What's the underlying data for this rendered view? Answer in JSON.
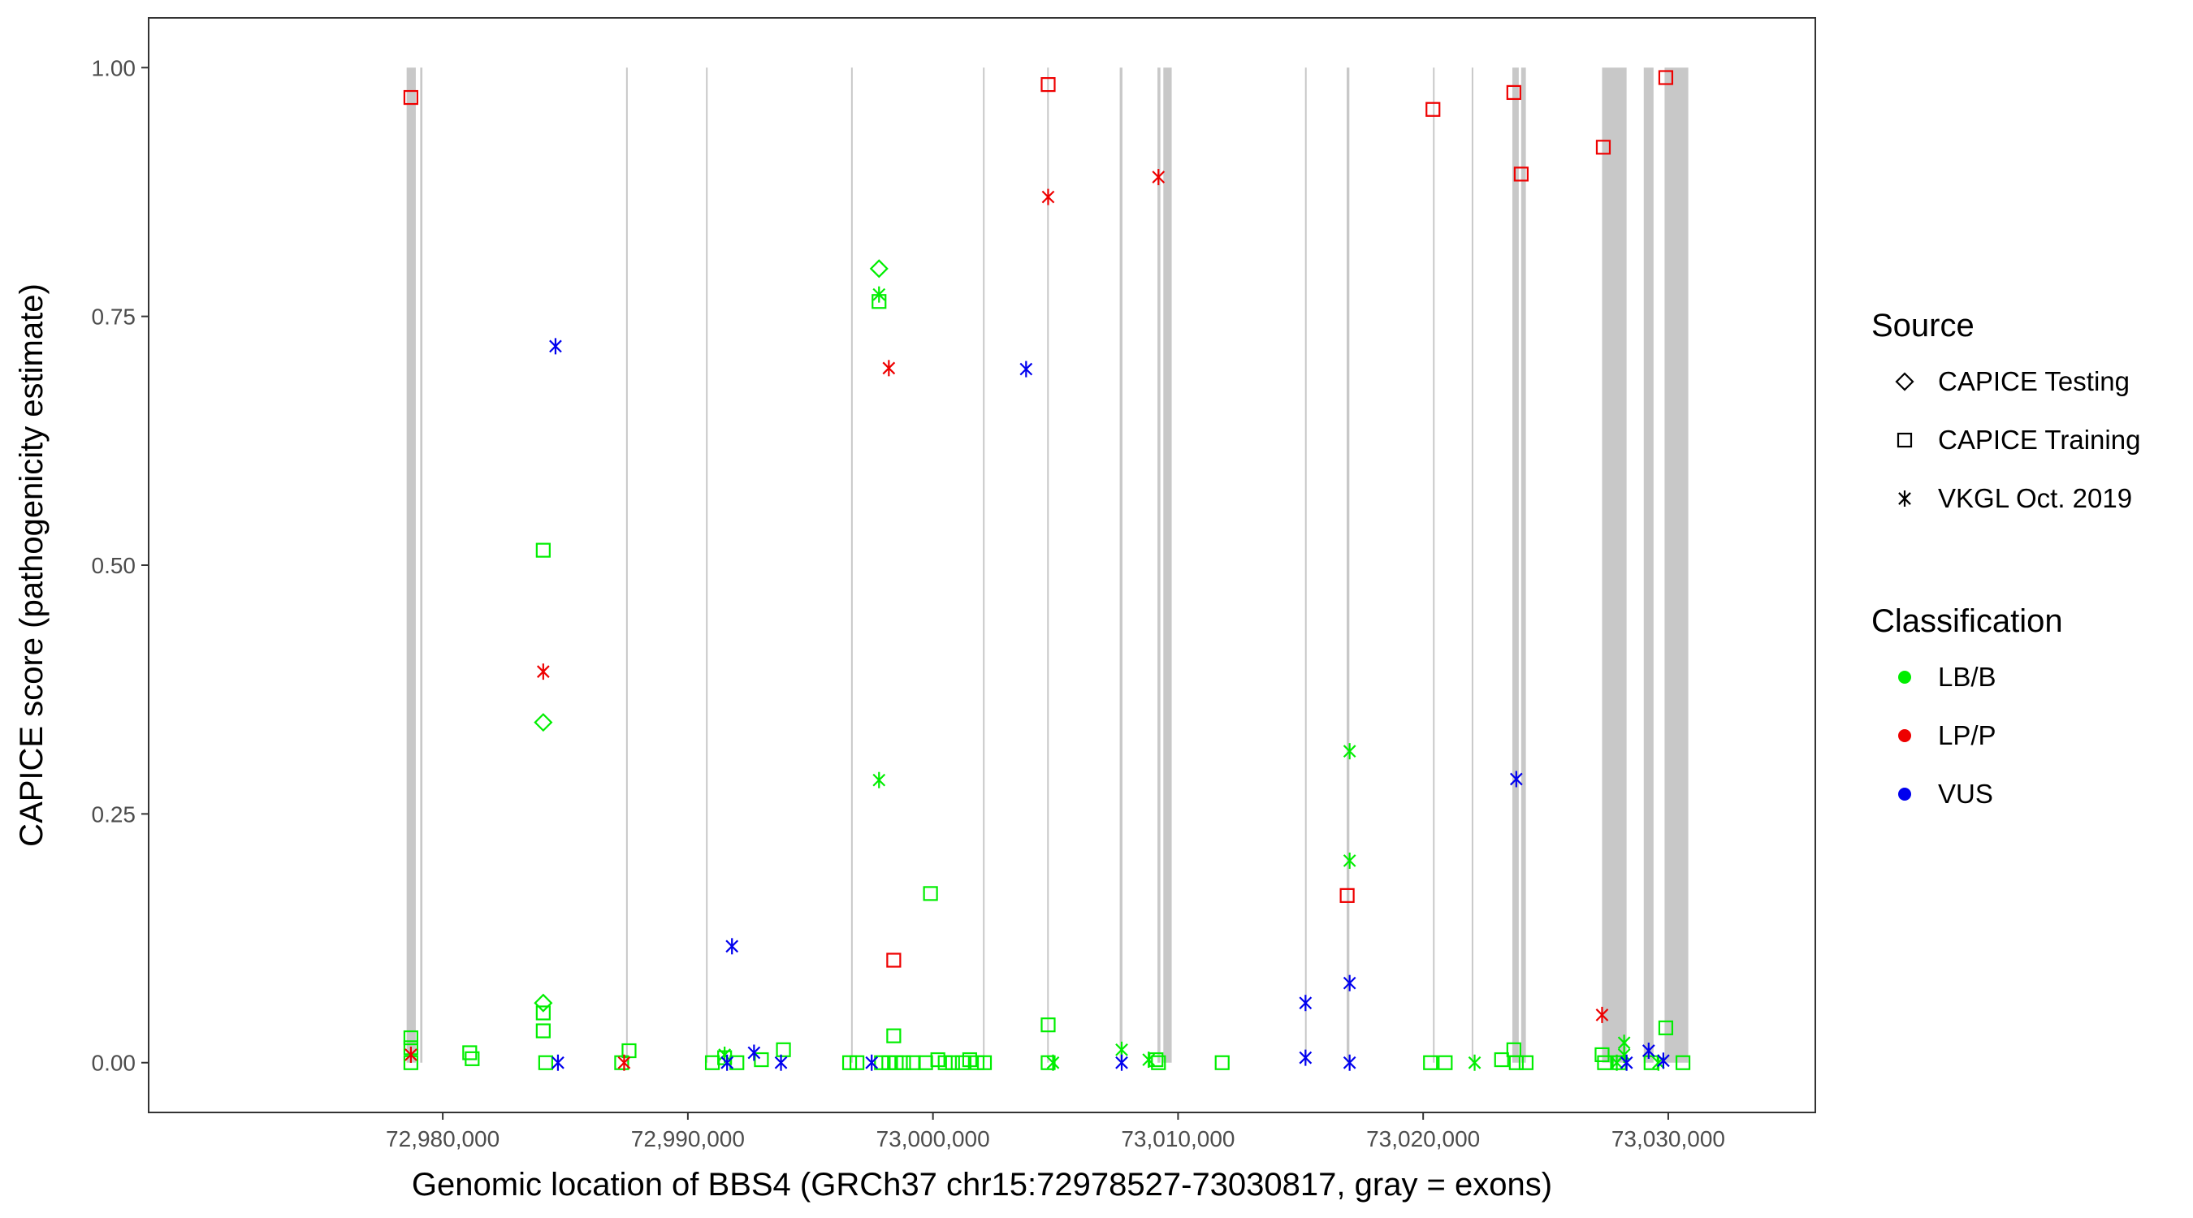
{
  "chart_data": {
    "type": "scatter",
    "xlabel": "Genomic location of BBS4 (GRCh37 chr15:72978527-73030817, gray = exons)",
    "ylabel": "CAPICE score (pathogenicity estimate)",
    "xlim": [
      72968000,
      73036000
    ],
    "ylim": [
      -0.05,
      1.05
    ],
    "x_ticks": [
      72980000,
      72990000,
      73000000,
      73010000,
      73020000,
      73030000
    ],
    "x_tick_labels": [
      "72,980,000",
      "72,990,000",
      "73,000,000",
      "73,010,000",
      "73,020,000",
      "73,030,000"
    ],
    "y_ticks": [
      0,
      0.25,
      0.5,
      0.75,
      1
    ],
    "y_tick_labels": [
      "0.00",
      "0.25",
      "0.50",
      "0.75",
      "1.00"
    ],
    "grid": false,
    "legend_placement": "right",
    "colors": {
      "LB/B": "#00ee00",
      "LP/P": "#ee0000",
      "VUS": "#0000ee",
      "exon": "#c8c8c8",
      "panel_border": "#333333"
    },
    "exons": [
      [
        72978527,
        72978900
      ],
      [
        72979080,
        72979170
      ],
      [
        72987480,
        72987540
      ],
      [
        72990740,
        72990800
      ],
      [
        72996660,
        72996720
      ],
      [
        73002040,
        73002100
      ],
      [
        73004660,
        73004720
      ],
      [
        73007620,
        73007730
      ],
      [
        73009160,
        73009280
      ],
      [
        73009400,
        73009740
      ],
      [
        73015180,
        73015240
      ],
      [
        73016880,
        73016990
      ],
      [
        73020400,
        73020460
      ],
      [
        73021980,
        73022040
      ],
      [
        73023640,
        73023900
      ],
      [
        73024000,
        73024190
      ],
      [
        73027300,
        73028300
      ],
      [
        73029000,
        73029400
      ],
      [
        73029850,
        73030817
      ]
    ],
    "legend": {
      "source_title": "Source",
      "source_items": [
        {
          "label": "CAPICE Testing",
          "shape": "diamond"
        },
        {
          "label": "CAPICE Training",
          "shape": "square"
        },
        {
          "label": "VKGL Oct. 2019",
          "shape": "asterisk"
        }
      ],
      "class_title": "Classification",
      "class_items": [
        {
          "label": "LB/B",
          "color": "#00ee00"
        },
        {
          "label": "LP/P",
          "color": "#ee0000"
        },
        {
          "label": "VUS",
          "color": "#0000ee"
        }
      ]
    },
    "series": [
      {
        "source": "CAPICE Training",
        "class": "LP/P",
        "points": [
          [
            72978700,
            0.97
          ],
          [
            73004700,
            0.983
          ],
          [
            73020400,
            0.958
          ],
          [
            73023700,
            0.975
          ],
          [
            73024000,
            0.893
          ],
          [
            73027350,
            0.92
          ],
          [
            73029900,
            0.99
          ],
          [
            73016900,
            0.168
          ],
          [
            72998400,
            0.103
          ]
        ]
      },
      {
        "source": "CAPICE Training",
        "class": "LB/B",
        "points": [
          [
            72978700,
            0.025
          ],
          [
            72978700,
            0.015
          ],
          [
            72978700,
            0.0
          ],
          [
            72981100,
            0.01
          ],
          [
            72981200,
            0.004
          ],
          [
            72984100,
            0.515
          ],
          [
            72984100,
            0.05
          ],
          [
            72984100,
            0.032
          ],
          [
            72984200,
            0.0
          ],
          [
            72987600,
            0.012
          ],
          [
            72987300,
            0.0
          ],
          [
            72991000,
            0.0
          ],
          [
            72991500,
            0.005
          ],
          [
            72992000,
            0.0
          ],
          [
            72993000,
            0.003
          ],
          [
            72993900,
            0.013
          ],
          [
            72996600,
            0.0
          ],
          [
            72996900,
            0.0
          ],
          [
            72997800,
            0.765
          ],
          [
            72997900,
            0.0
          ],
          [
            72998200,
            0.0
          ],
          [
            72998400,
            0.027
          ],
          [
            72998500,
            0.0
          ],
          [
            72998800,
            0.0
          ],
          [
            72999200,
            0.0
          ],
          [
            72999700,
            0.0
          ],
          [
            72999900,
            0.17
          ],
          [
            73000200,
            0.003
          ],
          [
            73000500,
            0.0
          ],
          [
            73000800,
            0.0
          ],
          [
            73001200,
            0.0
          ],
          [
            73001500,
            0.003
          ],
          [
            73001800,
            0.0
          ],
          [
            73002100,
            0.0
          ],
          [
            73004700,
            0.038
          ],
          [
            73004700,
            0.0
          ],
          [
            73009100,
            0.003
          ],
          [
            73009200,
            0.0
          ],
          [
            73011800,
            0.0
          ],
          [
            73020300,
            0.0
          ],
          [
            73020900,
            0.0
          ],
          [
            73023200,
            0.003
          ],
          [
            73023700,
            0.013
          ],
          [
            73023800,
            0.0
          ],
          [
            73024200,
            0.0
          ],
          [
            73027300,
            0.008
          ],
          [
            73027400,
            0.0
          ],
          [
            73028000,
            0.0
          ],
          [
            73029300,
            0.0
          ],
          [
            73029900,
            0.035
          ],
          [
            73030600,
            0.0
          ]
        ]
      },
      {
        "source": "CAPICE Testing",
        "class": "LB/B",
        "points": [
          [
            72997800,
            0.798
          ],
          [
            72984100,
            0.342
          ],
          [
            72984100,
            0.06
          ]
        ]
      },
      {
        "source": "VKGL Oct. 2019",
        "class": "LP/P",
        "points": [
          [
            73004700,
            0.87
          ],
          [
            73009200,
            0.89
          ],
          [
            72998200,
            0.698
          ],
          [
            72984100,
            0.393
          ],
          [
            72978700,
            0.008
          ],
          [
            72987400,
            0.0
          ],
          [
            73027300,
            0.048
          ]
        ]
      },
      {
        "source": "VKGL Oct. 2019",
        "class": "LB/B",
        "points": [
          [
            72997800,
            0.772
          ],
          [
            72997800,
            0.284
          ],
          [
            73017000,
            0.313
          ],
          [
            73017000,
            0.203
          ],
          [
            72991500,
            0.008
          ],
          [
            73007700,
            0.013
          ],
          [
            73008800,
            0.003
          ],
          [
            73022100,
            0.0
          ],
          [
            73004900,
            0.0
          ],
          [
            73028200,
            0.02
          ],
          [
            73028200,
            0.008
          ],
          [
            73027900,
            0.0
          ],
          [
            73029600,
            0.0
          ]
        ]
      },
      {
        "source": "VKGL Oct. 2019",
        "class": "VUS",
        "points": [
          [
            72984600,
            0.72
          ],
          [
            73003800,
            0.697
          ],
          [
            72991800,
            0.117
          ],
          [
            73015200,
            0.06
          ],
          [
            73017000,
            0.08
          ],
          [
            73023800,
            0.285
          ],
          [
            72984700,
            0.0
          ],
          [
            72991600,
            0.0
          ],
          [
            72992700,
            0.01
          ],
          [
            72993800,
            0.0
          ],
          [
            72997500,
            0.0
          ],
          [
            73007700,
            0.0
          ],
          [
            73015200,
            0.005
          ],
          [
            73017000,
            0.0
          ],
          [
            73028300,
            0.0
          ],
          [
            73029200,
            0.012
          ],
          [
            73029800,
            0.002
          ]
        ]
      }
    ]
  }
}
